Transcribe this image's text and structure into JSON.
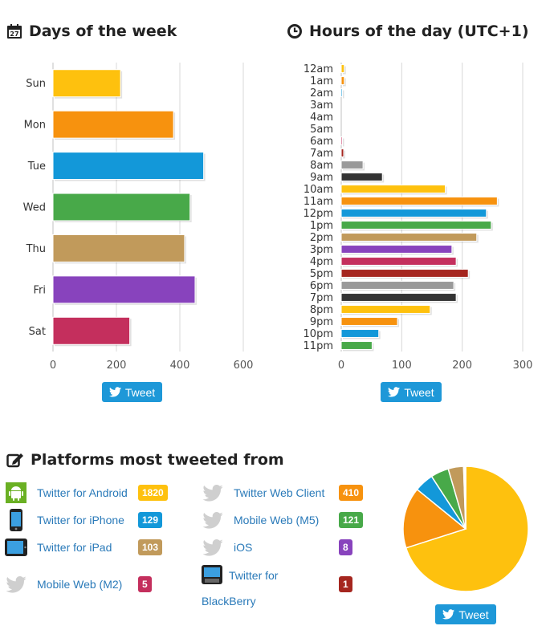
{
  "days_chart": {
    "heading": "Days of the week",
    "chart_data": {
      "type": "bar",
      "orientation": "horizontal",
      "title": "Days of the week",
      "categories": [
        "Sun",
        "Mon",
        "Tue",
        "Wed",
        "Thu",
        "Fri",
        "Sat"
      ],
      "values": [
        213,
        380,
        475,
        432,
        415,
        448,
        242
      ],
      "colors": [
        "#fec10e",
        "#f7920e",
        "#1398d9",
        "#48a949",
        "#c19a5b",
        "#8843bd",
        "#c42f5d"
      ],
      "xlim": [
        0,
        600
      ],
      "xticks": [
        0,
        200,
        400,
        600
      ],
      "grid": true
    },
    "tweet_label": "Tweet"
  },
  "hours_chart": {
    "heading": "Hours of the day (UTC+1)",
    "chart_data": {
      "type": "bar",
      "orientation": "horizontal",
      "title": "Hours of the day (UTC+1)",
      "categories": [
        "12am",
        "1am",
        "2am",
        "3am",
        "4am",
        "5am",
        "6am",
        "7am",
        "8am",
        "9am",
        "10am",
        "11am",
        "12pm",
        "1pm",
        "2pm",
        "3pm",
        "4pm",
        "5pm",
        "6pm",
        "7pm",
        "8pm",
        "9pm",
        "10pm",
        "11pm"
      ],
      "values": [
        5,
        5,
        2,
        0,
        0,
        0,
        2,
        4,
        36,
        68,
        172,
        258,
        240,
        248,
        224,
        183,
        190,
        210,
        186,
        190,
        147,
        93,
        62,
        51
      ],
      "colors": [
        "#fec10e",
        "#f7920e",
        "#1398d9",
        "#48a949",
        "#c19a5b",
        "#8843bd",
        "#c42f5d",
        "#a5261f",
        "#999999",
        "#333333",
        "#fec10e",
        "#f7920e",
        "#1398d9",
        "#48a949",
        "#c19a5b",
        "#8843bd",
        "#c42f5d",
        "#a5261f",
        "#999999",
        "#333333",
        "#fec10e",
        "#f7920e",
        "#1398d9",
        "#48a949"
      ],
      "xlim": [
        0,
        300
      ],
      "xticks": [
        0,
        100,
        200,
        300
      ],
      "grid": true
    },
    "tweet_label": "Tweet"
  },
  "platforms": {
    "heading": "Platforms most tweeted from",
    "items": [
      {
        "name": "Twitter for Android",
        "count": "1820",
        "color": "#fec10e",
        "icon": "android-icon"
      },
      {
        "name": "Twitter for iPhone",
        "count": "129",
        "color": "#1398d9",
        "icon": "iphone-icon"
      },
      {
        "name": "Twitter for iPad",
        "count": "103",
        "color": "#c19a5b",
        "icon": "ipad-icon"
      },
      {
        "name": "Mobile Web (M2)",
        "count": "5",
        "color": "#c42f5d",
        "icon": "bird-icon"
      },
      {
        "name": "Twitter Web Client",
        "count": "410",
        "color": "#f7920e",
        "icon": "bird-icon"
      },
      {
        "name": "Mobile Web (M5)",
        "count": "121",
        "color": "#48a949",
        "icon": "bird-icon"
      },
      {
        "name": "iOS",
        "count": "8",
        "color": "#8843bd",
        "icon": "bird-icon"
      },
      {
        "name": "Twitter for BlackBerry",
        "count": "1",
        "color": "#a5261f",
        "icon": "blackberry-icon"
      }
    ],
    "chart_data": {
      "type": "pie",
      "labels": [
        "Twitter for Android",
        "Twitter Web Client",
        "Twitter for iPhone",
        "Mobile Web (M5)",
        "Twitter for iPad",
        "iOS",
        "Mobile Web (M2)",
        "Twitter for BlackBerry"
      ],
      "values": [
        1820,
        410,
        129,
        121,
        103,
        8,
        5,
        1
      ],
      "colors": [
        "#fec10e",
        "#f7920e",
        "#1398d9",
        "#48a949",
        "#c19a5b",
        "#8843bd",
        "#c42f5d",
        "#a5261f"
      ]
    },
    "tweet_label": "Tweet"
  }
}
